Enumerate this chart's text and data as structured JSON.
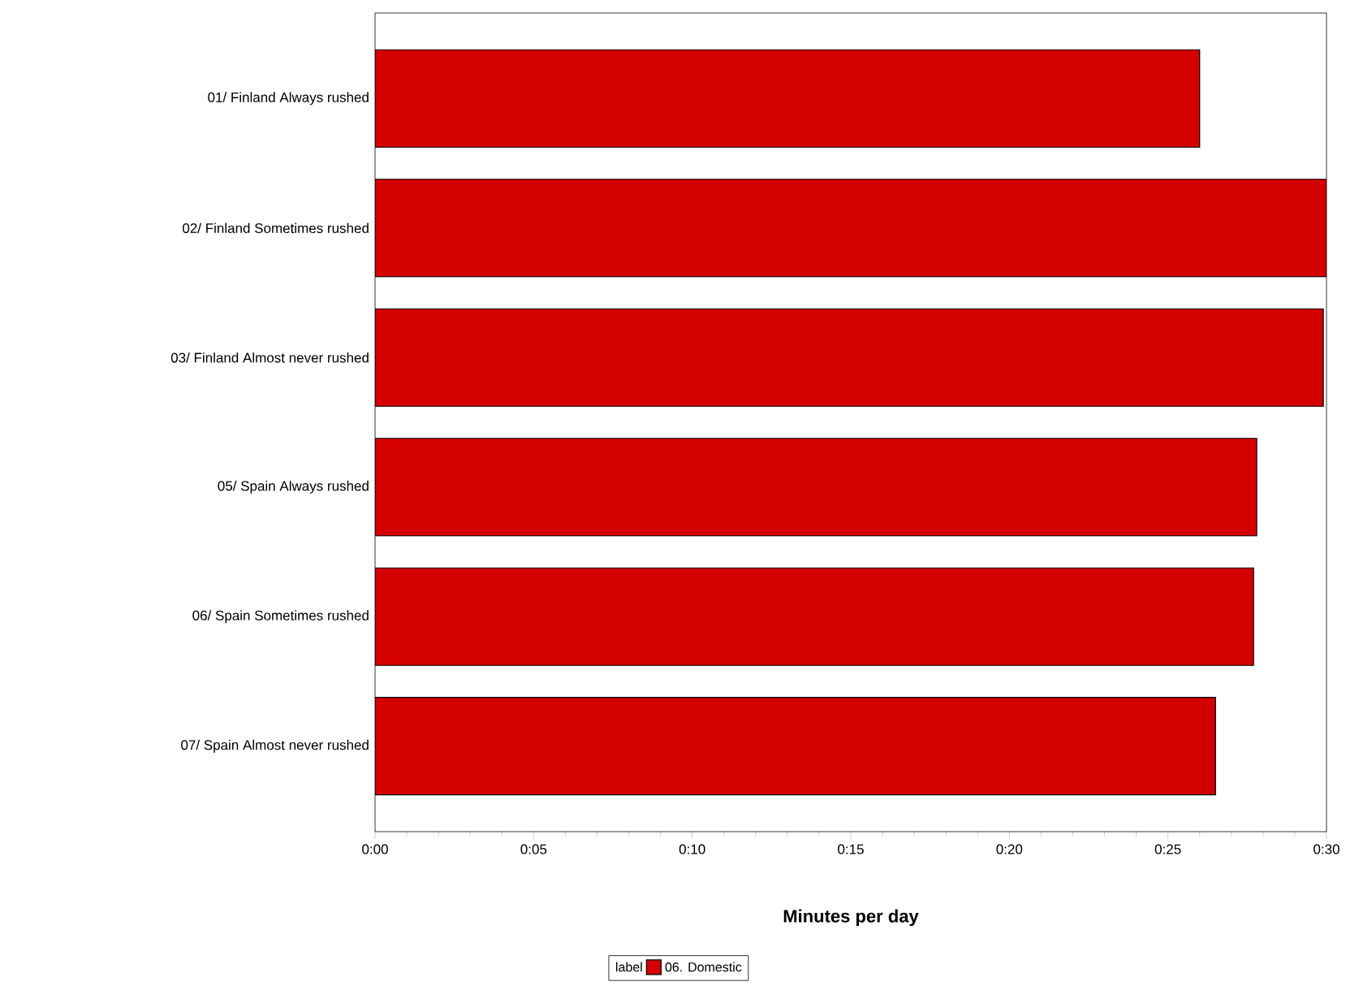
{
  "chart_data": {
    "type": "bar",
    "orientation": "horizontal",
    "xlabel": "Minutes per day",
    "legend_title": "label",
    "categories": [
      "01/ Finland Always rushed",
      "02/ Finland Sometimes rushed",
      "03/ Finland Almost never rushed",
      "05/ Spain Always rushed",
      "06/ Spain Sometimes rushed",
      "07/ Spain Almost never rushed"
    ],
    "series": [
      {
        "name": "06. Domestic",
        "color": "#d40000",
        "values": [
          26.0,
          30.0,
          29.9,
          27.8,
          27.7,
          26.5
        ]
      }
    ],
    "xlim": [
      0,
      30
    ],
    "xticks": [
      {
        "value": 0,
        "label": "0:00"
      },
      {
        "value": 5,
        "label": "0:05"
      },
      {
        "value": 10,
        "label": "0:10"
      },
      {
        "value": 15,
        "label": "0:15"
      },
      {
        "value": 20,
        "label": "0:20"
      },
      {
        "value": 25,
        "label": "0:25"
      },
      {
        "value": 30,
        "label": "0:30"
      }
    ],
    "legend": "bottom",
    "grid": false
  }
}
